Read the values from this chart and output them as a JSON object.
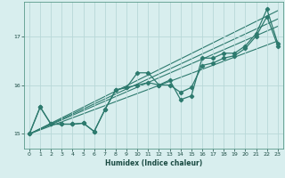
{
  "xlabel": "Humidex (Indice chaleur)",
  "bg_color": "#d8eeee",
  "grid_color": "#b8d8d8",
  "line_color": "#2d7a6e",
  "xlim": [
    -0.5,
    23.5
  ],
  "ylim": [
    14.7,
    17.7
  ],
  "yticks": [
    15,
    16,
    17
  ],
  "xticks": [
    0,
    1,
    2,
    3,
    4,
    5,
    6,
    7,
    8,
    9,
    10,
    11,
    12,
    13,
    14,
    15,
    16,
    17,
    18,
    19,
    20,
    21,
    22,
    23
  ],
  "series1": [
    [
      0,
      15.0
    ],
    [
      1,
      15.55
    ],
    [
      2,
      15.2
    ],
    [
      3,
      15.2
    ],
    [
      4,
      15.2
    ],
    [
      5,
      15.22
    ],
    [
      6,
      15.05
    ],
    [
      7,
      15.5
    ],
    [
      8,
      15.9
    ],
    [
      9,
      15.95
    ],
    [
      10,
      16.25
    ],
    [
      11,
      16.25
    ],
    [
      12,
      16.0
    ],
    [
      13,
      16.1
    ],
    [
      14,
      15.7
    ],
    [
      15,
      15.78
    ],
    [
      16,
      16.55
    ],
    [
      17,
      16.55
    ],
    [
      18,
      16.65
    ],
    [
      19,
      16.65
    ],
    [
      20,
      16.8
    ],
    [
      21,
      17.05
    ],
    [
      22,
      17.55
    ],
    [
      23,
      16.85
    ]
  ],
  "series2": [
    [
      0,
      15.0
    ],
    [
      1,
      15.55
    ],
    [
      2,
      15.2
    ],
    [
      3,
      15.2
    ],
    [
      4,
      15.2
    ],
    [
      5,
      15.22
    ],
    [
      6,
      15.05
    ],
    [
      7,
      15.5
    ],
    [
      8,
      15.9
    ],
    [
      9,
      15.95
    ],
    [
      10,
      16.0
    ],
    [
      11,
      16.05
    ],
    [
      12,
      16.0
    ],
    [
      13,
      16.0
    ],
    [
      14,
      15.85
    ],
    [
      15,
      15.95
    ],
    [
      16,
      16.4
    ],
    [
      17,
      16.45
    ],
    [
      18,
      16.55
    ],
    [
      19,
      16.6
    ],
    [
      20,
      16.75
    ],
    [
      21,
      17.0
    ],
    [
      22,
      17.4
    ],
    [
      23,
      16.8
    ]
  ],
  "trend_lines": [
    [
      [
        0,
        23
      ],
      [
        15.0,
        17.52
      ]
    ],
    [
      [
        0,
        23
      ],
      [
        15.0,
        17.35
      ]
    ],
    [
      [
        0,
        23
      ],
      [
        15.0,
        17.2
      ]
    ],
    [
      [
        0,
        23
      ],
      [
        15.0,
        16.9
      ]
    ]
  ]
}
